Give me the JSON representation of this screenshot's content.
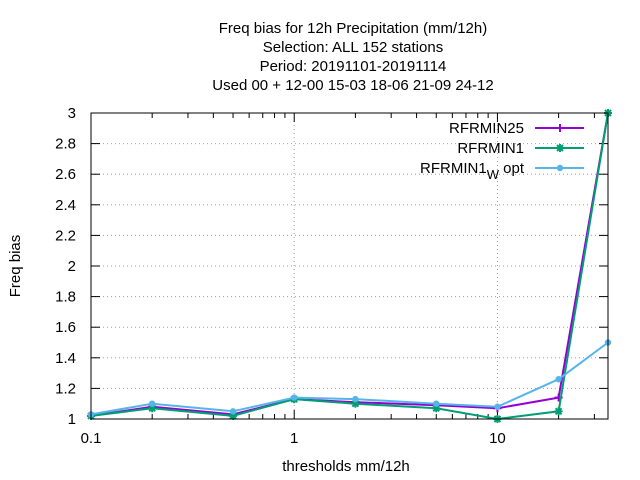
{
  "chart_data": {
    "type": "line",
    "title_lines": [
      "Freq bias  for 12h Precipitation (mm/12h)",
      "Selection: ALL    152 stations",
      "Period: 20191101-20191114",
      "Used  00 + 12-00 15-03 18-06 21-09 24-12"
    ],
    "xlabel": "thresholds mm/12h",
    "ylabel": "Freq bias",
    "x_scale": "log",
    "xlim": [
      0.1,
      35
    ],
    "ylim": [
      1,
      3
    ],
    "x_ticks": [
      {
        "value": 0.1,
        "label": "0.1"
      },
      {
        "value": 1,
        "label": "1"
      },
      {
        "value": 10,
        "label": "10"
      }
    ],
    "x_minor_ticks": [
      0.2,
      0.3,
      0.4,
      0.5,
      0.6,
      0.7,
      0.8,
      0.9,
      2,
      3,
      4,
      5,
      6,
      7,
      8,
      9,
      20,
      30
    ],
    "y_ticks": [
      {
        "value": 1,
        "label": "1"
      },
      {
        "value": 1.2,
        "label": "1.2"
      },
      {
        "value": 1.4,
        "label": "1.4"
      },
      {
        "value": 1.6,
        "label": "1.6"
      },
      {
        "value": 1.8,
        "label": "1.8"
      },
      {
        "value": 2,
        "label": "2"
      },
      {
        "value": 2.2,
        "label": "2.2"
      },
      {
        "value": 2.4,
        "label": "2.4"
      },
      {
        "value": 2.6,
        "label": "2.6"
      },
      {
        "value": 2.8,
        "label": "2.8"
      },
      {
        "value": 3,
        "label": "3"
      }
    ],
    "grid": true,
    "legend_position": "top-right",
    "x": [
      0.1,
      0.2,
      0.5,
      1,
      2,
      5,
      10,
      20,
      35
    ],
    "series": [
      {
        "name": "RFRMIN25",
        "color": "#9400d3",
        "marker": "plus",
        "values": [
          1.02,
          1.08,
          1.03,
          1.13,
          1.11,
          1.09,
          1.07,
          1.14,
          3.0
        ]
      },
      {
        "name": "RFRMIN1",
        "color": "#009e73",
        "marker": "star",
        "values": [
          1.02,
          1.07,
          1.02,
          1.13,
          1.1,
          1.07,
          1.0,
          1.05,
          3.0
        ]
      },
      {
        "name": "RFRMIN1",
        "name_subscript": "W",
        "name_suffix": " opt",
        "color": "#56b4e9",
        "marker": "dot",
        "values": [
          1.03,
          1.1,
          1.05,
          1.14,
          1.13,
          1.1,
          1.08,
          1.26,
          1.5
        ]
      }
    ]
  }
}
